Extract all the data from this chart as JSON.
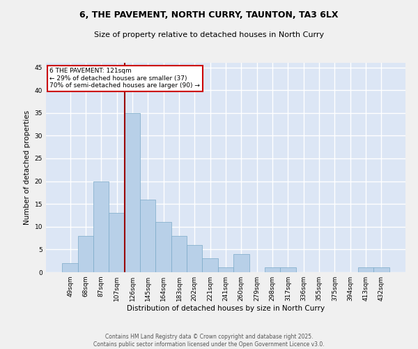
{
  "title_line1": "6, THE PAVEMENT, NORTH CURRY, TAUNTON, TA3 6LX",
  "title_line2": "Size of property relative to detached houses in North Curry",
  "xlabel": "Distribution of detached houses by size in North Curry",
  "ylabel": "Number of detached properties",
  "categories": [
    "49sqm",
    "68sqm",
    "87sqm",
    "107sqm",
    "126sqm",
    "145sqm",
    "164sqm",
    "183sqm",
    "202sqm",
    "221sqm",
    "241sqm",
    "260sqm",
    "279sqm",
    "298sqm",
    "317sqm",
    "336sqm",
    "355sqm",
    "375sqm",
    "394sqm",
    "413sqm",
    "432sqm"
  ],
  "values": [
    2,
    8,
    20,
    13,
    35,
    16,
    11,
    8,
    6,
    3,
    1,
    4,
    0,
    1,
    1,
    0,
    0,
    0,
    0,
    1,
    1
  ],
  "bar_color": "#b8d0e8",
  "bar_edge_color": "#7aaac8",
  "vline_color": "#990000",
  "annotation_text": "6 THE PAVEMENT: 121sqm\n← 29% of detached houses are smaller (37)\n70% of semi-detached houses are larger (90) →",
  "annotation_box_color": "#ffffff",
  "annotation_box_edge": "#cc0000",
  "ylim": [
    0,
    46
  ],
  "yticks": [
    0,
    5,
    10,
    15,
    20,
    25,
    30,
    35,
    40,
    45
  ],
  "background_color": "#dce6f5",
  "grid_color": "#ffffff",
  "fig_background": "#f0f0f0",
  "footer_line1": "Contains HM Land Registry data © Crown copyright and database right 2025.",
  "footer_line2": "Contains public sector information licensed under the Open Government Licence v3.0.",
  "vline_pos": 3.5
}
